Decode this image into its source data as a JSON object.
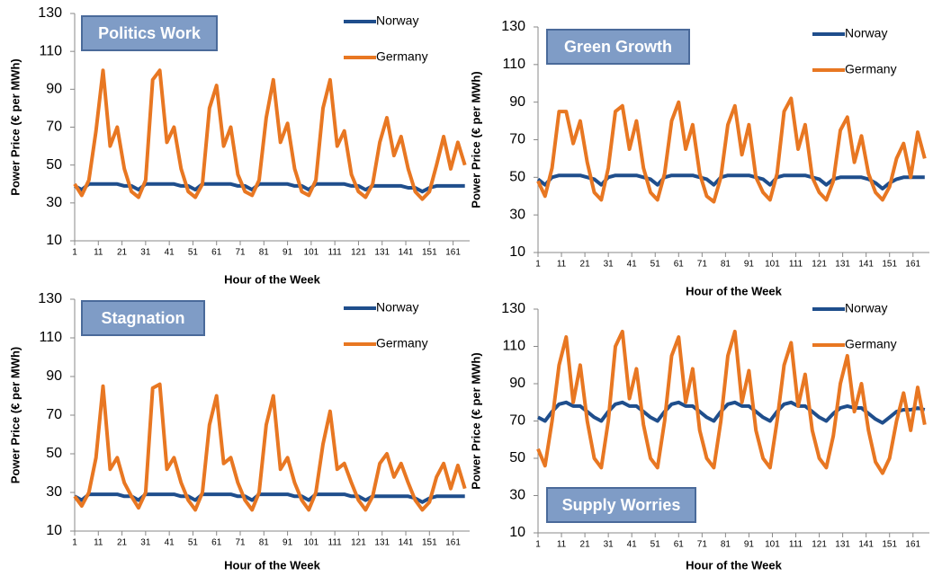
{
  "chart_data": [
    {
      "type": "line",
      "title": "Politics Work",
      "x_label": "Hour of the Week",
      "y_label": "Power Price (€ per MWh)",
      "xlim": [
        1,
        168
      ],
      "xticks": [
        1,
        11,
        21,
        31,
        41,
        51,
        61,
        71,
        81,
        91,
        101,
        111,
        121,
        131,
        141,
        151,
        161
      ],
      "ylim": [
        10,
        130
      ],
      "yticks": [
        10,
        30,
        50,
        70,
        90,
        110,
        130
      ],
      "x": [
        1,
        4,
        7,
        10,
        13,
        16,
        19,
        22,
        25,
        28,
        31,
        34,
        37,
        40,
        43,
        46,
        49,
        52,
        55,
        58,
        61,
        64,
        67,
        70,
        73,
        76,
        79,
        82,
        85,
        88,
        91,
        94,
        97,
        100,
        103,
        106,
        109,
        112,
        115,
        118,
        121,
        124,
        127,
        130,
        133,
        136,
        139,
        142,
        145,
        148,
        151,
        154,
        157,
        160,
        163,
        166
      ],
      "series": [
        {
          "name": "Norway",
          "color": "#1f4e8c",
          "values": [
            39,
            37,
            40,
            40,
            40,
            40,
            40,
            39,
            39,
            37,
            40,
            40,
            40,
            40,
            40,
            39,
            39,
            37,
            40,
            40,
            40,
            40,
            40,
            39,
            39,
            37,
            40,
            40,
            40,
            40,
            40,
            39,
            39,
            37,
            40,
            40,
            40,
            40,
            40,
            39,
            39,
            37,
            39,
            39,
            39,
            39,
            39,
            38,
            38,
            36,
            38,
            39,
            39,
            39,
            39,
            39
          ]
        },
        {
          "name": "Germany",
          "color": "#e87722",
          "values": [
            40,
            34,
            42,
            68,
            100,
            60,
            70,
            48,
            36,
            33,
            42,
            95,
            100,
            62,
            70,
            48,
            36,
            33,
            40,
            80,
            92,
            60,
            70,
            45,
            36,
            34,
            42,
            75,
            95,
            62,
            72,
            48,
            36,
            34,
            42,
            80,
            95,
            60,
            68,
            45,
            36,
            33,
            40,
            62,
            75,
            55,
            65,
            48,
            36,
            32,
            36,
            50,
            65,
            48,
            62,
            50
          ]
        }
      ]
    },
    {
      "type": "line",
      "title": "Green Growth",
      "x_label": "Hour of the Week",
      "y_label": "Power Price (€ per MWh)",
      "xlim": [
        1,
        168
      ],
      "xticks": [
        1,
        11,
        21,
        31,
        41,
        51,
        61,
        71,
        81,
        91,
        101,
        111,
        121,
        131,
        141,
        151,
        161
      ],
      "ylim": [
        10,
        130
      ],
      "yticks": [
        10,
        30,
        50,
        70,
        90,
        110,
        130
      ],
      "x": [
        1,
        4,
        7,
        10,
        13,
        16,
        19,
        22,
        25,
        28,
        31,
        34,
        37,
        40,
        43,
        46,
        49,
        52,
        55,
        58,
        61,
        64,
        67,
        70,
        73,
        76,
        79,
        82,
        85,
        88,
        91,
        94,
        97,
        100,
        103,
        106,
        109,
        112,
        115,
        118,
        121,
        124,
        127,
        130,
        133,
        136,
        139,
        142,
        145,
        148,
        151,
        154,
        157,
        160,
        163,
        166
      ],
      "series": [
        {
          "name": "Norway",
          "color": "#1f4e8c",
          "values": [
            49,
            46,
            50,
            51,
            51,
            51,
            51,
            50,
            49,
            46,
            50,
            51,
            51,
            51,
            51,
            50,
            49,
            46,
            50,
            51,
            51,
            51,
            51,
            50,
            49,
            46,
            50,
            51,
            51,
            51,
            51,
            50,
            49,
            46,
            50,
            51,
            51,
            51,
            51,
            50,
            49,
            46,
            49,
            50,
            50,
            50,
            50,
            49,
            47,
            44,
            47,
            49,
            50,
            50,
            50,
            50
          ]
        },
        {
          "name": "Germany",
          "color": "#e87722",
          "values": [
            48,
            40,
            55,
            85,
            85,
            68,
            80,
            58,
            42,
            38,
            55,
            85,
            88,
            65,
            80,
            55,
            42,
            38,
            52,
            80,
            90,
            65,
            78,
            52,
            40,
            37,
            50,
            78,
            88,
            62,
            78,
            50,
            42,
            38,
            52,
            85,
            92,
            65,
            78,
            50,
            42,
            38,
            48,
            75,
            82,
            58,
            72,
            52,
            42,
            38,
            45,
            60,
            68,
            50,
            74,
            60
          ]
        }
      ]
    },
    {
      "type": "line",
      "title": "Stagnation",
      "x_label": "Hour of the Week",
      "y_label": "Power Price (€ per MWh)",
      "xlim": [
        1,
        168
      ],
      "xticks": [
        1,
        11,
        21,
        31,
        41,
        51,
        61,
        71,
        81,
        91,
        101,
        111,
        121,
        131,
        141,
        151,
        161
      ],
      "ylim": [
        10,
        130
      ],
      "yticks": [
        10,
        30,
        50,
        70,
        90,
        110,
        130
      ],
      "x": [
        1,
        4,
        7,
        10,
        13,
        16,
        19,
        22,
        25,
        28,
        31,
        34,
        37,
        40,
        43,
        46,
        49,
        52,
        55,
        58,
        61,
        64,
        67,
        70,
        73,
        76,
        79,
        82,
        85,
        88,
        91,
        94,
        97,
        100,
        103,
        106,
        109,
        112,
        115,
        118,
        121,
        124,
        127,
        130,
        133,
        136,
        139,
        142,
        145,
        148,
        151,
        154,
        157,
        160,
        163,
        166
      ],
      "series": [
        {
          "name": "Norway",
          "color": "#1f4e8c",
          "values": [
            28,
            26,
            29,
            29,
            29,
            29,
            29,
            28,
            28,
            26,
            29,
            29,
            29,
            29,
            29,
            28,
            28,
            26,
            29,
            29,
            29,
            29,
            29,
            28,
            28,
            26,
            29,
            29,
            29,
            29,
            29,
            28,
            28,
            26,
            29,
            29,
            29,
            29,
            29,
            28,
            28,
            26,
            28,
            28,
            28,
            28,
            28,
            28,
            27,
            25,
            27,
            28,
            28,
            28,
            28,
            28
          ]
        },
        {
          "name": "Germany",
          "color": "#e87722",
          "values": [
            28,
            23,
            30,
            48,
            85,
            42,
            48,
            35,
            28,
            22,
            30,
            84,
            86,
            42,
            48,
            35,
            26,
            21,
            30,
            65,
            80,
            45,
            48,
            35,
            26,
            21,
            30,
            65,
            80,
            42,
            48,
            35,
            26,
            21,
            30,
            55,
            72,
            42,
            45,
            35,
            26,
            21,
            28,
            45,
            50,
            38,
            45,
            35,
            26,
            21,
            25,
            38,
            45,
            32,
            44,
            32
          ]
        }
      ]
    },
    {
      "type": "line",
      "title": "Supply Worries",
      "x_label": "Hour of the Week",
      "y_label": "Power Price (€ per MWh)",
      "xlim": [
        1,
        168
      ],
      "xticks": [
        1,
        11,
        21,
        31,
        41,
        51,
        61,
        71,
        81,
        91,
        101,
        111,
        121,
        131,
        141,
        151,
        161
      ],
      "ylim": [
        10,
        130
      ],
      "yticks": [
        10,
        30,
        50,
        70,
        90,
        110,
        130
      ],
      "x": [
        1,
        4,
        7,
        10,
        13,
        16,
        19,
        22,
        25,
        28,
        31,
        34,
        37,
        40,
        43,
        46,
        49,
        52,
        55,
        58,
        61,
        64,
        67,
        70,
        73,
        76,
        79,
        82,
        85,
        88,
        91,
        94,
        97,
        100,
        103,
        106,
        109,
        112,
        115,
        118,
        121,
        124,
        127,
        130,
        133,
        136,
        139,
        142,
        145,
        148,
        151,
        154,
        157,
        160,
        163,
        166
      ],
      "series": [
        {
          "name": "Norway",
          "color": "#1f4e8c",
          "values": [
            72,
            70,
            75,
            79,
            80,
            78,
            78,
            75,
            72,
            70,
            75,
            79,
            80,
            78,
            78,
            75,
            72,
            70,
            75,
            79,
            80,
            78,
            78,
            75,
            72,
            70,
            75,
            79,
            80,
            78,
            78,
            75,
            72,
            70,
            75,
            79,
            80,
            78,
            78,
            75,
            72,
            70,
            74,
            77,
            78,
            77,
            77,
            74,
            71,
            69,
            72,
            75,
            76,
            76,
            77,
            76
          ]
        },
        {
          "name": "Germany",
          "color": "#e87722",
          "values": [
            55,
            46,
            70,
            100,
            115,
            80,
            100,
            70,
            50,
            45,
            70,
            110,
            118,
            82,
            98,
            68,
            50,
            45,
            70,
            105,
            115,
            80,
            98,
            65,
            50,
            45,
            70,
            105,
            118,
            80,
            97,
            65,
            50,
            45,
            70,
            100,
            112,
            78,
            95,
            65,
            50,
            45,
            62,
            90,
            105,
            75,
            90,
            65,
            48,
            42,
            50,
            70,
            85,
            65,
            88,
            68
          ]
        }
      ]
    }
  ]
}
